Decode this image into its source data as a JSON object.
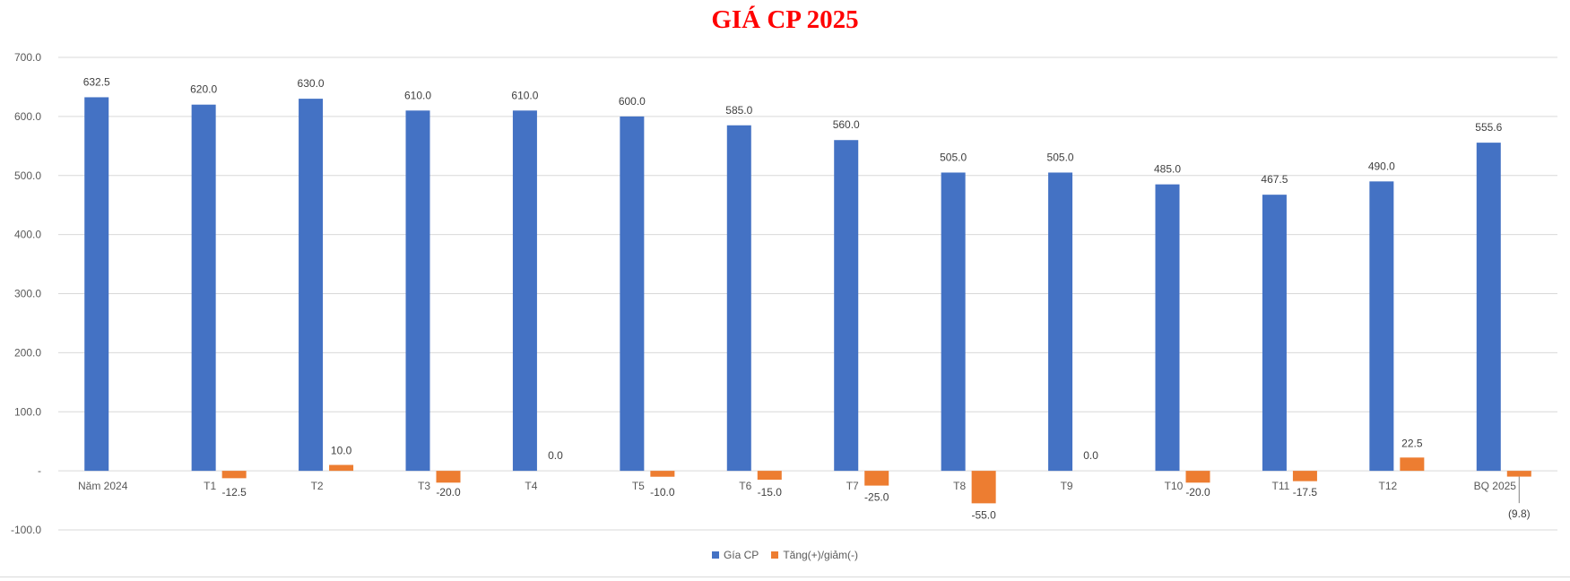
{
  "chart_data": {
    "type": "bar",
    "title": "GIÁ CP 2025",
    "categories": [
      "Năm 2024",
      "T1",
      "T2",
      "T3",
      "T4",
      "T5",
      "T6",
      "T7",
      "T8",
      "T9",
      "T10",
      "T11",
      "T12",
      "BQ 2025"
    ],
    "series": [
      {
        "name": "Gía CP",
        "color": "#4472c4",
        "values": [
          632.5,
          620.0,
          630.0,
          610.0,
          610.0,
          600.0,
          585.0,
          560.0,
          505.0,
          505.0,
          485.0,
          467.5,
          490.0,
          555.6
        ],
        "labels": [
          "632.5",
          "620.0",
          "630.0",
          "610.0",
          "610.0",
          "600.0",
          "585.0",
          "560.0",
          "505.0",
          "505.0",
          "485.0",
          "467.5",
          "490.0",
          "555.6"
        ]
      },
      {
        "name": "Tăng(+)/giảm(-)",
        "color": "#ed7d31",
        "values": [
          null,
          -12.5,
          10.0,
          -20.0,
          0.0,
          -10.0,
          -15.0,
          -25.0,
          -55.0,
          0.0,
          -20.0,
          -17.5,
          22.5,
          -9.8
        ],
        "labels": [
          "",
          "-12.5",
          "10.0",
          "-20.0",
          "0.0",
          "-10.0",
          "-15.0",
          "-25.0",
          "-55.0",
          "0.0",
          "-20.0",
          "-17.5",
          "22.5",
          "(9.8)"
        ]
      }
    ],
    "ylim": [
      -100,
      700
    ],
    "yticks": [
      700,
      600,
      500,
      400,
      300,
      200,
      100,
      0,
      -100
    ],
    "ytick_labels": [
      "700.0",
      "600.0",
      "500.0",
      "400.0",
      "300.0",
      "200.0",
      "100.0",
      "-",
      "-100.0"
    ],
    "grid": true,
    "legend": "bottom",
    "xlabel": "",
    "ylabel": ""
  }
}
